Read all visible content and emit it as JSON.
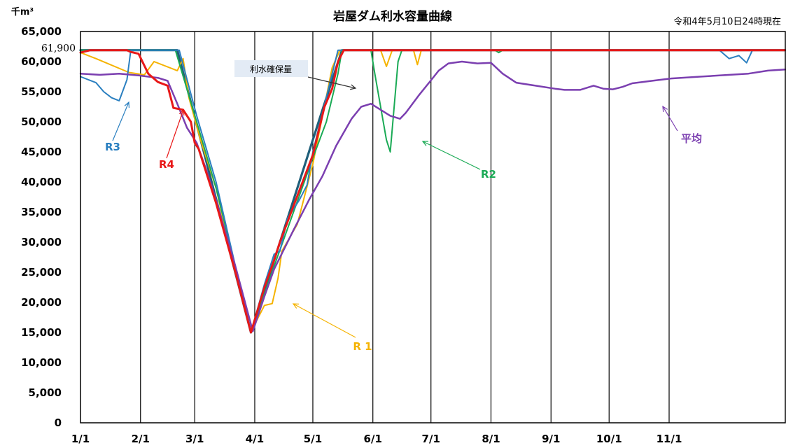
{
  "chart_data": {
    "type": "line",
    "title": "岩屋ダム利水容量曲線",
    "subtitle": "令和4年5月10日24時現在",
    "yunit": "千m³",
    "ylim": [
      0,
      65000
    ],
    "yticks": [
      "0",
      "5,000",
      "10,000",
      "15,000",
      "20,000",
      "25,000",
      "30,000",
      "35,000",
      "40,000",
      "45,000",
      "50,000",
      "55,000",
      "60,000",
      "65,000"
    ],
    "xlim": [
      0,
      364
    ],
    "xticks": [
      {
        "label": "1/1",
        "x": 0
      },
      {
        "label": "2/1",
        "x": 31
      },
      {
        "label": "3/1",
        "x": 59
      },
      {
        "label": "4/1",
        "x": 90
      },
      {
        "label": "5/1",
        "x": 120
      },
      {
        "label": "6/1",
        "x": 151
      },
      {
        "label": "7/1",
        "x": 181
      },
      {
        "label": "8/1",
        "x": 212
      },
      {
        "label": "9/1",
        "x": 243
      },
      {
        "label": "10/1",
        "x": 273
      },
      {
        "label": "11/1",
        "x": 304
      }
    ],
    "grid": "vertical",
    "reference_label": "61,900",
    "series": [
      {
        "name": "利水確保量",
        "color": "#1f5f7a",
        "width": 3.2,
        "points": [
          [
            0,
            61900
          ],
          [
            50,
            61900
          ],
          [
            88,
            15000
          ],
          [
            125,
            52000
          ],
          [
            135,
            61900
          ],
          [
            364,
            61900
          ]
        ]
      },
      {
        "name": "R 1",
        "color": "#f5b301",
        "width": 2,
        "points": [
          [
            0,
            61500
          ],
          [
            8,
            60500
          ],
          [
            25,
            58200
          ],
          [
            33,
            57800
          ],
          [
            38,
            60000
          ],
          [
            50,
            58500
          ],
          [
            53,
            60500
          ],
          [
            56,
            54000
          ],
          [
            62,
            47000
          ],
          [
            70,
            39000
          ],
          [
            80,
            25000
          ],
          [
            88,
            15000
          ],
          [
            91,
            17000
          ],
          [
            95,
            19500
          ],
          [
            99,
            19800
          ],
          [
            102,
            24000
          ],
          [
            104,
            28500
          ],
          [
            112,
            33000
          ],
          [
            120,
            43000
          ],
          [
            130,
            59000
          ],
          [
            134,
            61900
          ],
          [
            155,
            61900
          ],
          [
            158,
            59200
          ],
          [
            161,
            61900
          ],
          [
            172,
            61900
          ],
          [
            174,
            59500
          ],
          [
            176,
            61900
          ],
          [
            364,
            61900
          ]
        ]
      },
      {
        "name": "R2",
        "color": "#1aaa55",
        "width": 2,
        "points": [
          [
            0,
            61900
          ],
          [
            49,
            61900
          ],
          [
            60,
            50000
          ],
          [
            70,
            39000
          ],
          [
            80,
            26000
          ],
          [
            88,
            15000
          ],
          [
            100,
            26000
          ],
          [
            110,
            35000
          ],
          [
            120,
            44000
          ],
          [
            127,
            50000
          ],
          [
            133,
            58000
          ],
          [
            135,
            61900
          ],
          [
            150,
            61900
          ],
          [
            152,
            58000
          ],
          [
            158,
            47000
          ],
          [
            160,
            45000
          ],
          [
            164,
            60000
          ],
          [
            166,
            61900
          ],
          [
            214,
            61900
          ],
          [
            216,
            61500
          ],
          [
            218,
            61900
          ],
          [
            364,
            61900
          ]
        ]
      },
      {
        "name": "R3",
        "color": "#2a7fc0",
        "width": 2,
        "points": [
          [
            0,
            57500
          ],
          [
            8,
            56500
          ],
          [
            12,
            55000
          ],
          [
            16,
            54000
          ],
          [
            20,
            53500
          ],
          [
            24,
            57000
          ],
          [
            26,
            61900
          ],
          [
            51,
            61900
          ],
          [
            60,
            51000
          ],
          [
            70,
            40000
          ],
          [
            80,
            26000
          ],
          [
            88,
            15000
          ],
          [
            95,
            23000
          ],
          [
            100,
            28000
          ],
          [
            103,
            28500
          ],
          [
            107,
            34000
          ],
          [
            113,
            37000
          ],
          [
            117,
            39500
          ],
          [
            120,
            45000
          ],
          [
            133,
            61900
          ],
          [
            330,
            61900
          ],
          [
            335,
            60500
          ],
          [
            340,
            61000
          ],
          [
            344,
            59800
          ],
          [
            347,
            61900
          ],
          [
            364,
            61900
          ]
        ]
      },
      {
        "name": "R4",
        "color": "#e81818",
        "width": 3,
        "points": [
          [
            0,
            61500
          ],
          [
            5,
            61900
          ],
          [
            24,
            61900
          ],
          [
            26,
            61600
          ],
          [
            30,
            61300
          ],
          [
            35,
            58000
          ],
          [
            40,
            56600
          ],
          [
            45,
            56000
          ],
          [
            48,
            52300
          ],
          [
            53,
            52000
          ],
          [
            57,
            50000
          ],
          [
            59,
            46500
          ],
          [
            61,
            45500
          ],
          [
            70,
            36500
          ],
          [
            80,
            25000
          ],
          [
            88,
            15000
          ],
          [
            95,
            22500
          ],
          [
            100,
            27000
          ],
          [
            103,
            30000
          ],
          [
            110,
            36000
          ],
          [
            120,
            44500
          ],
          [
            126,
            52500
          ],
          [
            130,
            55500
          ],
          [
            133,
            60000
          ],
          [
            136,
            61900
          ],
          [
            364,
            61900
          ]
        ]
      },
      {
        "name": "平均",
        "color": "#7b3fb0",
        "width": 2.5,
        "points": [
          [
            0,
            58000
          ],
          [
            10,
            57800
          ],
          [
            20,
            58000
          ],
          [
            30,
            57700
          ],
          [
            40,
            57300
          ],
          [
            45,
            56800
          ],
          [
            50,
            53000
          ],
          [
            55,
            49000
          ],
          [
            60,
            46500
          ],
          [
            65,
            42000
          ],
          [
            70,
            37000
          ],
          [
            80,
            26000
          ],
          [
            89,
            15200
          ],
          [
            95,
            21000
          ],
          [
            100,
            25500
          ],
          [
            110,
            32000
          ],
          [
            118,
            37000
          ],
          [
            125,
            41000
          ],
          [
            132,
            46000
          ],
          [
            140,
            50500
          ],
          [
            145,
            52500
          ],
          [
            150,
            53000
          ],
          [
            155,
            52000
          ],
          [
            160,
            51000
          ],
          [
            165,
            50500
          ],
          [
            168,
            51500
          ],
          [
            175,
            54500
          ],
          [
            180,
            56500
          ],
          [
            185,
            58500
          ],
          [
            190,
            59700
          ],
          [
            197,
            60000
          ],
          [
            205,
            59700
          ],
          [
            212,
            59800
          ],
          [
            218,
            58000
          ],
          [
            225,
            56500
          ],
          [
            235,
            56000
          ],
          [
            245,
            55500
          ],
          [
            250,
            55300
          ],
          [
            258,
            55300
          ],
          [
            265,
            56000
          ],
          [
            270,
            55500
          ],
          [
            275,
            55400
          ],
          [
            280,
            55800
          ],
          [
            285,
            56400
          ],
          [
            295,
            56800
          ],
          [
            305,
            57200
          ],
          [
            320,
            57500
          ],
          [
            330,
            57700
          ],
          [
            345,
            58000
          ],
          [
            355,
            58500
          ],
          [
            364,
            58700
          ]
        ]
      }
    ],
    "annotations": [
      {
        "text": "利水確保量"
      },
      {
        "text": "R3"
      },
      {
        "text": "R4"
      },
      {
        "text": "R 1"
      },
      {
        "text": "R2"
      },
      {
        "text": "平均"
      }
    ]
  }
}
